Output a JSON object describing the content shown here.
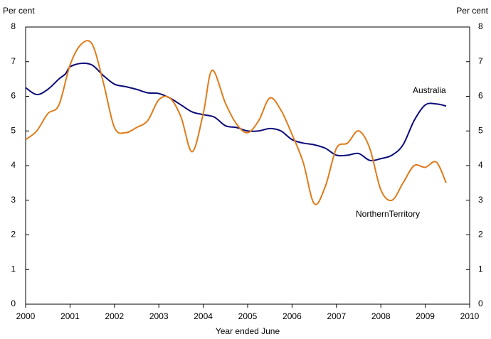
{
  "chart_data": {
    "type": "line",
    "y_label": "Per cent",
    "y2_label": "Per cent",
    "x_label": "Year ended June",
    "xlim": [
      2000,
      2010
    ],
    "xticks": [
      2000,
      2001,
      2002,
      2003,
      2004,
      2005,
      2006,
      2007,
      2008,
      2009,
      2010
    ],
    "ylim": [
      0,
      8
    ],
    "yticks": [
      0,
      1,
      2,
      3,
      4,
      5,
      6,
      7,
      8
    ],
    "y2lim": [
      0,
      8
    ],
    "y2ticks": [
      0,
      1,
      2,
      3,
      4,
      5,
      6,
      7,
      8
    ],
    "grid": false,
    "series": [
      {
        "name": "Australia",
        "color": "#0b0b7a",
        "x": [
          2000,
          2000.25,
          2000.5,
          2000.75,
          2000.9,
          2001,
          2001.25,
          2001.5,
          2001.75,
          2002,
          2002.25,
          2002.5,
          2002.75,
          2003,
          2003.25,
          2003.5,
          2003.75,
          2004,
          2004.25,
          2004.5,
          2004.75,
          2005,
          2005.25,
          2005.5,
          2005.75,
          2006,
          2006.25,
          2006.5,
          2006.75,
          2007,
          2007.25,
          2007.5,
          2007.75,
          2008,
          2008.25,
          2008.5,
          2008.75,
          2009,
          2009.25,
          2009.47
        ],
        "values": [
          6.25,
          6.05,
          6.2,
          6.5,
          6.65,
          6.85,
          6.95,
          6.9,
          6.6,
          6.35,
          6.28,
          6.2,
          6.1,
          6.08,
          5.95,
          5.75,
          5.55,
          5.47,
          5.4,
          5.15,
          5.1,
          5.0,
          5.0,
          5.07,
          5.0,
          4.75,
          4.65,
          4.6,
          4.5,
          4.3,
          4.3,
          4.35,
          4.15,
          4.2,
          4.3,
          4.6,
          5.3,
          5.75,
          5.78,
          5.72
        ]
      },
      {
        "name": "NorthernTerritory",
        "color": "#e07b1a",
        "x": [
          2000,
          2000.25,
          2000.5,
          2000.75,
          2001,
          2001.25,
          2001.5,
          2001.75,
          2002,
          2002.25,
          2002.5,
          2002.75,
          2003,
          2003.25,
          2003.5,
          2003.75,
          2004,
          2004.2,
          2004.5,
          2004.75,
          2005,
          2005.25,
          2005.5,
          2005.75,
          2006,
          2006.25,
          2006.5,
          2006.75,
          2007,
          2007.25,
          2007.5,
          2007.75,
          2008,
          2008.25,
          2008.5,
          2008.75,
          2009,
          2009.25,
          2009.47
        ],
        "values": [
          4.75,
          5.0,
          5.5,
          5.75,
          6.9,
          7.5,
          7.5,
          6.4,
          5.1,
          4.95,
          5.1,
          5.3,
          5.9,
          5.95,
          5.4,
          4.4,
          5.5,
          6.75,
          5.8,
          5.2,
          4.95,
          5.3,
          5.95,
          5.6,
          4.9,
          4.1,
          2.9,
          3.4,
          4.5,
          4.65,
          5.0,
          4.5,
          3.3,
          3.0,
          3.5,
          4.0,
          3.95,
          4.1,
          3.5
        ]
      }
    ]
  }
}
